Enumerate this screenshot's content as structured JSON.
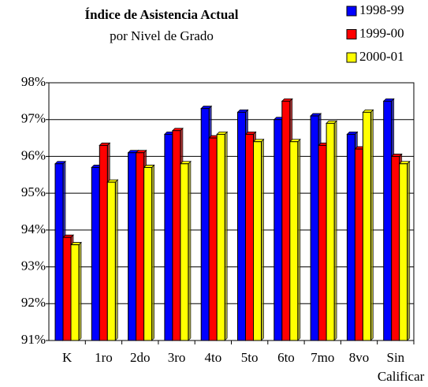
{
  "chart_data": {
    "type": "bar",
    "title": "Índice de Asistencia Actual",
    "subtitle": "por Nivel de Grado",
    "categories": [
      "K",
      "1ro",
      "2do",
      "3ro",
      "4to",
      "5to",
      "6to",
      "7mo",
      "8vo",
      "Sin Calificar"
    ],
    "series": [
      {
        "name": "1998-99",
        "color": "#0000ff",
        "values": [
          95.8,
          95.7,
          96.1,
          96.6,
          97.3,
          97.2,
          97.0,
          97.1,
          96.6,
          97.5
        ]
      },
      {
        "name": "1999-00",
        "color": "#ff0000",
        "values": [
          93.8,
          96.3,
          96.1,
          96.7,
          96.5,
          96.6,
          97.5,
          96.3,
          96.2,
          96.0
        ]
      },
      {
        "name": "2000-01",
        "color": "#ffff00",
        "values": [
          93.6,
          95.3,
          95.7,
          95.8,
          96.6,
          96.4,
          96.4,
          96.9,
          97.2,
          95.8
        ]
      }
    ],
    "ylim": [
      91,
      98
    ],
    "yticks": [
      {
        "value": 91,
        "label": "91%"
      },
      {
        "value": 92,
        "label": "92%"
      },
      {
        "value": 93,
        "label": "93%"
      },
      {
        "value": 94,
        "label": "94%"
      },
      {
        "value": 95,
        "label": "95%"
      },
      {
        "value": 96,
        "label": "96%"
      },
      {
        "value": 97,
        "label": "97%"
      },
      {
        "value": 98,
        "label": "98%"
      }
    ],
    "grid": true,
    "legend": "top-right"
  }
}
